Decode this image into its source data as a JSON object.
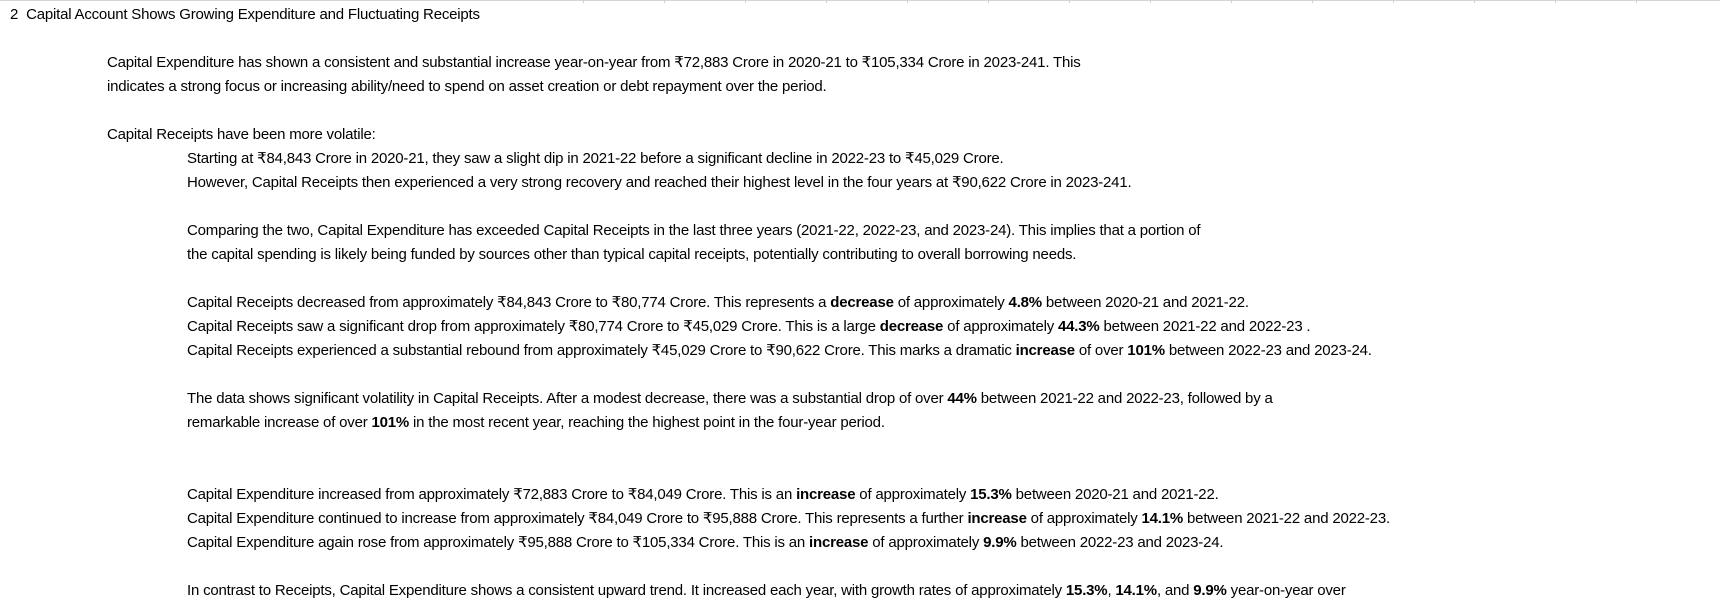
{
  "heading": {
    "number": "2",
    "title": "Capital Account Shows Growing Expenditure and Fluctuating Receipts"
  },
  "paragraphs": {
    "capex_intro_1": "Capital Expenditure has shown a consistent and substantial increase year-on-year from ₹72,883 Crore in 2020-21 to ₹105,334 Crore in 2023-241. This",
    "capex_intro_2": "indicates a strong focus or increasing ability/need to spend on asset creation or debt repayment over the period.",
    "receipts_intro": "Capital Receipts have been more volatile:",
    "receipts_detail_1": "Starting at ₹84,843 Crore in 2020-21, they saw a slight dip in 2021-22 before a significant decline in 2022-23 to ₹45,029 Crore.",
    "receipts_detail_2": "However, Capital Receipts then experienced a very strong recovery and reached their highest level in the four years at ₹90,622 Crore in 2023-241.",
    "comparison_1": "Comparing the two, Capital Expenditure has exceeded Capital Receipts in the last three years (2021-22, 2022-23, and 2023-24). This implies that a portion of",
    "comparison_2": "the capital spending is likely being funded by sources other than typical capital receipts, potentially contributing to overall borrowing needs."
  },
  "receipts_changes": [
    {
      "pre": "Capital Receipts decreased from approximately ₹84,843 Crore to ₹80,774 Crore. This represents a ",
      "kind": "decrease",
      "mid": " of approximately ",
      "pct": "4.8%",
      "post": " between 2020-21 and 2021-22."
    },
    {
      "pre": "Capital Receipts saw a significant drop from approximately ₹80,774 Crore to ₹45,029 Crore. This is a large ",
      "kind": "decrease",
      "mid": " of approximately ",
      "pct": "44.3%",
      "post": " between 2021-22 and 2022-23 ."
    },
    {
      "pre": "Capital Receipts experienced a substantial rebound from approximately ₹45,029 Crore to ₹90,622 Crore. This marks a dramatic ",
      "kind": "increase",
      "mid": " of over ",
      "pct": "101%",
      "post": " between 2022-23 and 2023-24."
    }
  ],
  "volatility": {
    "line1_pre": "The data shows significant volatility in Capital Receipts. After a modest decrease, there was a substantial drop of over ",
    "line1_pct": "44%",
    "line1_post": " between 2021-22 and 2022-23, followed by a",
    "line2_pre": "remarkable increase of over ",
    "line2_pct": "101%",
    "line2_post": " in the most recent year, reaching the highest point in the four-year period."
  },
  "capex_changes": [
    {
      "pre": "Capital Expenditure increased from approximately ₹72,883 Crore to ₹84,049 Crore. This is an ",
      "kind": "increase",
      "mid": " of approximately ",
      "pct": "15.3%",
      "post": " between 2020-21 and 2021-22."
    },
    {
      "pre": "Capital Expenditure continued to increase from approximately ₹84,049 Crore to ₹95,888 Crore. This represents a further ",
      "kind": "increase",
      "mid": " of approximately ",
      "pct": "14.1%",
      "post": " between 2021-22 and 2022-23."
    },
    {
      "pre": "Capital Expenditure again rose from approximately ₹95,888 Crore to ₹105,334 Crore. This is an ",
      "kind": "increase",
      "mid": " of approximately ",
      "pct": "9.9%",
      "post": " between 2022-23 and 2023-24."
    }
  ],
  "contrast": {
    "pre": "In contrast to Receipts, Capital Expenditure shows a consistent upward trend. It increased each year, with growth rates of approximately ",
    "pct1": "15.3%",
    "sep1": ", ",
    "pct2": "14.1%",
    "sep2": ", and ",
    "pct3": "9.9%",
    "post": " year-on-year over"
  }
}
